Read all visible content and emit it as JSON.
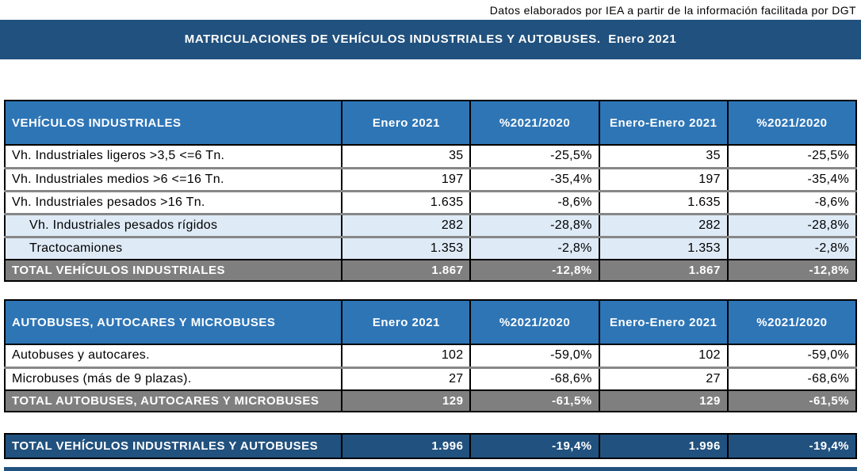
{
  "caption": "Datos elaborados por IEA a partir de la información facilitada por DGT",
  "title": "MATRICULACIONES DE VEHÍCULOS INDUSTRIALES Y AUTOBUSES.  Enero 2021",
  "colors": {
    "title_bar": "#21517E",
    "header_blue": "#2E75B6",
    "sub_row_blue": "#DEEAF6",
    "total_gray": "#7F7F7F",
    "grand_total_navy": "#21517E"
  },
  "columns": [
    "Enero 2021",
    "%2021/2020",
    "Enero-Enero 2021",
    "%2021/2020"
  ],
  "tables": [
    {
      "header": "VEHÍCULOS INDUSTRIALES",
      "rows": [
        {
          "label": "Vh. Industriales ligeros >3,5 <=6 Tn.",
          "values": [
            "35",
            "-25,5%",
            "35",
            "-25,5%"
          ],
          "style": "normal"
        },
        {
          "label": "Vh. Industriales medios >6  <=16 Tn.",
          "values": [
            "197",
            "-35,4%",
            "197",
            "-35,4%"
          ],
          "style": "normal"
        },
        {
          "label": "Vh. Industriales  pesados >16 Tn.",
          "values": [
            "1.635",
            "-8,6%",
            "1.635",
            "-8,6%"
          ],
          "style": "normal"
        },
        {
          "label": "Vh. Industriales pesados rígidos",
          "values": [
            "282",
            "-28,8%",
            "282",
            "-28,8%"
          ],
          "style": "sub"
        },
        {
          "label": "Tractocamiones",
          "values": [
            "1.353",
            "-2,8%",
            "1.353",
            "-2,8%"
          ],
          "style": "sub"
        },
        {
          "label": "TOTAL VEHÍCULOS INDUSTRIALES",
          "values": [
            "1.867",
            "-12,8%",
            "1.867",
            "-12,8%"
          ],
          "style": "total"
        }
      ]
    },
    {
      "header": "AUTOBUSES, AUTOCARES Y MICROBUSES",
      "rows": [
        {
          "label": "Autobuses y autocares.",
          "values": [
            "102",
            "-59,0%",
            "102",
            "-59,0%"
          ],
          "style": "normal"
        },
        {
          "label": "Microbuses (más de 9 plazas).",
          "values": [
            "27",
            "-68,6%",
            "27",
            "-68,6%"
          ],
          "style": "normal"
        },
        {
          "label": "TOTAL AUTOBUSES, AUTOCARES Y MICROBUSES",
          "values": [
            "129",
            "-61,5%",
            "129",
            "-61,5%"
          ],
          "style": "total"
        }
      ]
    }
  ],
  "grand_total": {
    "label": "TOTAL VEHÍCULOS INDUSTRIALES Y AUTOBUSES",
    "values": [
      "1.996",
      "-19,4%",
      "1.996",
      "-19,4%"
    ]
  }
}
